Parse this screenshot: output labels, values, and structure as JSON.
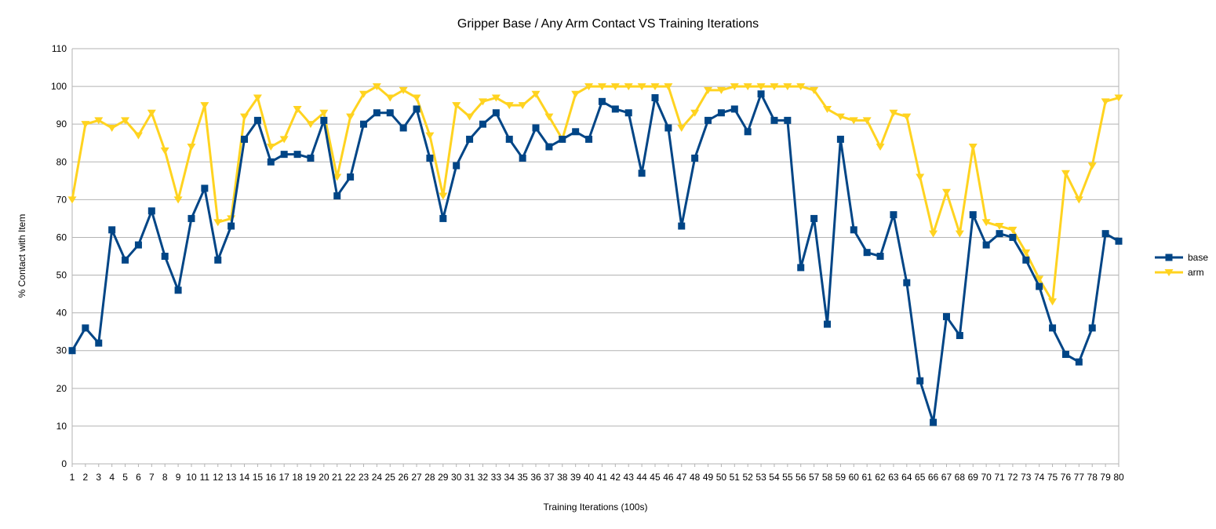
{
  "chart_data": {
    "type": "line",
    "title": "Gripper Base / Any Arm Contact VS Training Iterations",
    "xlabel": "Training Iterations (100s)",
    "ylabel": "% Contact with Item",
    "ylim": [
      0,
      110
    ],
    "yticks": [
      0,
      10,
      20,
      30,
      40,
      50,
      60,
      70,
      80,
      90,
      100,
      110
    ],
    "grid": true,
    "legend_position": "right",
    "categories": [
      "1",
      "2",
      "3",
      "4",
      "5",
      "6",
      "7",
      "8",
      "9",
      "10",
      "11",
      "12",
      "13",
      "14",
      "15",
      "16",
      "17",
      "18",
      "19",
      "20",
      "21",
      "22",
      "23",
      "24",
      "25",
      "26",
      "27",
      "28",
      "29",
      "30",
      "31",
      "32",
      "33",
      "34",
      "35",
      "36",
      "37",
      "38",
      "39",
      "40",
      "41",
      "42",
      "43",
      "44",
      "45",
      "46",
      "47",
      "48",
      "49",
      "50",
      "51",
      "52",
      "53",
      "54",
      "55",
      "56",
      "57",
      "58",
      "59",
      "60",
      "61",
      "62",
      "63",
      "64",
      "65",
      "66",
      "67",
      "68",
      "69",
      "70",
      "71",
      "72",
      "73",
      "74",
      "75",
      "76",
      "77",
      "78",
      "79",
      "80"
    ],
    "series": [
      {
        "name": "base",
        "color": "#004586",
        "marker": "square",
        "values": [
          30,
          36,
          32,
          62,
          54,
          58,
          67,
          55,
          46,
          65,
          73,
          54,
          63,
          86,
          91,
          80,
          82,
          82,
          81,
          91,
          71,
          76,
          90,
          93,
          93,
          89,
          94,
          81,
          65,
          79,
          86,
          90,
          93,
          86,
          81,
          89,
          84,
          86,
          88,
          86,
          96,
          94,
          93,
          77,
          97,
          89,
          63,
          81,
          91,
          93,
          94,
          88,
          98,
          91,
          91,
          52,
          65,
          37,
          86,
          62,
          56,
          55,
          66,
          48,
          22,
          11,
          39,
          34,
          66,
          58,
          61,
          60,
          54,
          47,
          36,
          29,
          27,
          36,
          61,
          59
        ]
      },
      {
        "name": "arm",
        "color": "#ffd320",
        "marker": "triangle-down",
        "values": [
          70,
          90,
          91,
          89,
          91,
          87,
          93,
          83,
          70,
          84,
          95,
          64,
          65,
          92,
          97,
          84,
          86,
          94,
          90,
          93,
          76,
          92,
          98,
          100,
          97,
          99,
          97,
          87,
          71,
          95,
          92,
          96,
          97,
          95,
          95,
          98,
          92,
          86,
          98,
          100,
          100,
          100,
          100,
          100,
          100,
          100,
          89,
          93,
          99,
          99,
          100,
          100,
          100,
          100,
          100,
          100,
          99,
          94,
          92,
          91,
          91,
          84,
          93,
          92,
          76,
          61,
          72,
          61,
          84,
          64,
          63,
          62,
          56,
          49,
          43,
          77,
          70,
          79,
          96,
          97
        ]
      }
    ]
  }
}
